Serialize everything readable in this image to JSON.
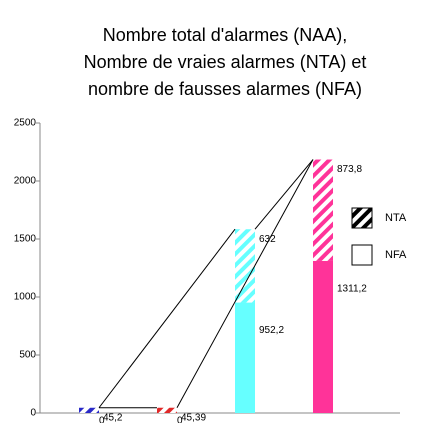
{
  "chart_data": {
    "type": "stacked_bar",
    "title": [
      "Nombre total d'alarmes (NAA),",
      "Nombre de vraies alarmes (NTA) et",
      "nombre de fausses alarmes (NFA)"
    ],
    "categories": [
      null,
      null,
      null,
      null
    ],
    "colors": [
      "#2a2ac8",
      "#e02828",
      "#66ffff",
      "#ff3399"
    ],
    "series": [
      {
        "name": "NFA",
        "pattern": "solid",
        "values": [
          0,
          0,
          952.2,
          1311.2
        ],
        "value_labels": [
          "0",
          "0",
          "952,2",
          "1311,2"
        ]
      },
      {
        "name": "NTA",
        "pattern": "hatched",
        "values": [
          45.2,
          45.39,
          632,
          873.8
        ],
        "value_labels": [
          "45,2",
          "45,39",
          "632",
          "873,8"
        ]
      }
    ],
    "ylim": [
      0,
      2500
    ],
    "yticks": [
      0,
      500,
      1000,
      1500,
      2000,
      2500
    ],
    "grid": false,
    "legend": "right"
  }
}
